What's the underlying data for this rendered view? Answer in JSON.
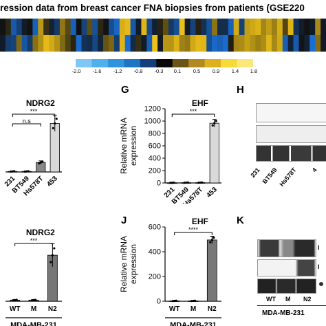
{
  "header": {
    "title": "ression data from breast cancer FNA biopsies from patients (GSE220"
  },
  "heatmap": {
    "rows": 2,
    "cols": 60,
    "palette": {
      "low": "#1a6fd6",
      "mid": "#111111",
      "high": "#f2c418"
    }
  },
  "colorbar": {
    "ticks": [
      "-2.0",
      "-1.6",
      "-1.2",
      "-0.8",
      "-0.3",
      "0.1",
      "0.5",
      "0.9",
      "1.4",
      "1.8"
    ],
    "colors": [
      "#7fc8f5",
      "#4fb0ec",
      "#2f94dc",
      "#1f74c4",
      "#143e7a",
      "#080808",
      "#6a5418",
      "#b08a1c",
      "#ddb01f",
      "#f7d93a",
      "#fce77a"
    ]
  },
  "panels": {
    "h_letter": "H",
    "k_letter": "K",
    "g_letter": "G",
    "j_letter": "J",
    "h_lanes": [
      "231",
      "BT549",
      "Hs578T",
      "4"
    ],
    "k_lanes": [
      "WT",
      "M",
      "N2"
    ],
    "k_caption": "MDA-MB-231",
    "k_side_labels": [
      "I",
      "I"
    ]
  },
  "chart_data": [
    {
      "panel": "",
      "type": "bar",
      "title": "NDRG2",
      "categories": [
        "231",
        "BT549",
        "Hs578T",
        "453"
      ],
      "values": [
        1,
        1,
        18,
        92
      ],
      "errors": [
        0.5,
        0.5,
        3,
        15
      ],
      "ylim": [
        0,
        120
      ],
      "yticks": [],
      "ylabel": "",
      "xlabel": "",
      "rotated_ticks": true,
      "bar_colors": [
        "#555555",
        "#555555",
        "#888888",
        "#d9d9d9"
      ],
      "brackets": [
        {
          "from": 0,
          "to": 3,
          "label": "***"
        },
        {
          "from": 0,
          "to": 2,
          "label": "n.s"
        }
      ]
    },
    {
      "panel": "G",
      "type": "bar",
      "title": "EHF",
      "categories": [
        "231",
        "BT549",
        "Hs578T",
        "453"
      ],
      "values": [
        3,
        5,
        5,
        965
      ],
      "errors": [
        2,
        3,
        3,
        60
      ],
      "ylim": [
        0,
        1200
      ],
      "yticks": [
        "0",
        "200",
        "400",
        "600",
        "800",
        "1000",
        "1200"
      ],
      "ylabel": "Relative mRNA expression",
      "xlabel": "",
      "rotated_ticks": true,
      "bar_colors": [
        "#555555",
        "#555555",
        "#888888",
        "#d9d9d9"
      ],
      "brackets": [
        {
          "from": 0,
          "to": 3,
          "label": "***"
        }
      ]
    },
    {
      "panel": "",
      "type": "bar",
      "title": "NDRG2",
      "categories": [
        "WT",
        "M",
        "N2"
      ],
      "values": [
        1,
        1,
        40
      ],
      "errors": [
        0.3,
        0.3,
        10
      ],
      "ylim": [
        0,
        55
      ],
      "yticks": [],
      "ylabel": "",
      "xlabel": "MDA-MB-231",
      "rotated_ticks": false,
      "bar_colors": [
        "#444444",
        "#444444",
        "#777777"
      ],
      "brackets": [
        {
          "from": 0,
          "to": 2,
          "label": "***"
        }
      ]
    },
    {
      "panel": "J",
      "type": "bar",
      "title": "EHF",
      "categories": [
        "WT",
        "M",
        "N2"
      ],
      "values": [
        3,
        3,
        495
      ],
      "errors": [
        2,
        2,
        30
      ],
      "ylim": [
        0,
        600
      ],
      "yticks": [
        "0",
        "200",
        "400",
        "600"
      ],
      "ylabel": "Relative mRNA expression",
      "xlabel": "MDA-MB-231",
      "rotated_ticks": false,
      "bar_colors": [
        "#444444",
        "#444444",
        "#777777"
      ],
      "brackets": [
        {
          "from": 0,
          "to": 2,
          "label": "****"
        }
      ]
    }
  ]
}
